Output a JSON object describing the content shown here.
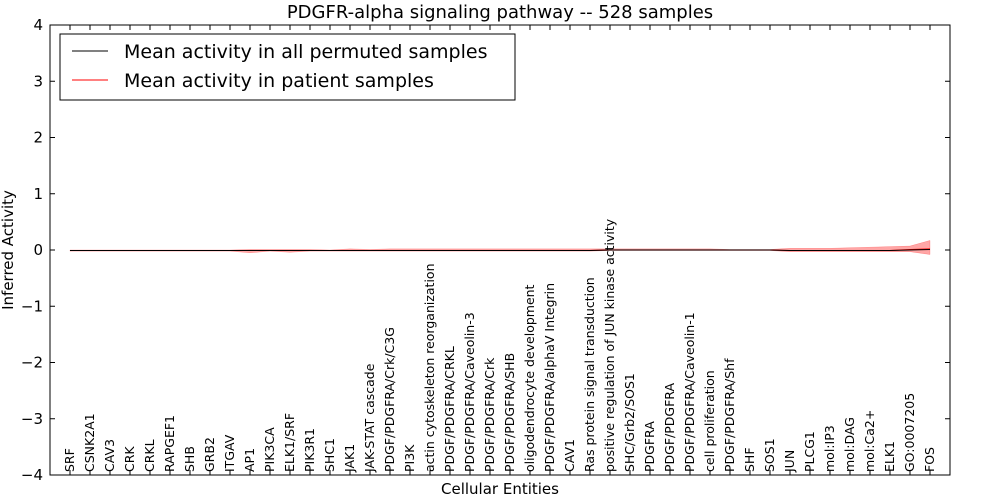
{
  "chart_data": {
    "type": "line",
    "title": "PDGFR-alpha signaling pathway -- 528 samples",
    "xlabel": "Cellular Entities",
    "ylabel": "Inferred Activity",
    "ylim": [
      -4,
      4
    ],
    "yticks": [
      {
        "value": -4,
        "label": "−4"
      },
      {
        "value": -3,
        "label": "−3"
      },
      {
        "value": -2,
        "label": "−2"
      },
      {
        "value": -1,
        "label": "−1"
      },
      {
        "value": 0,
        "label": "0"
      },
      {
        "value": 1,
        "label": "1"
      },
      {
        "value": 2,
        "label": "2"
      },
      {
        "value": 3,
        "label": "3"
      },
      {
        "value": 4,
        "label": "4"
      }
    ],
    "grid": false,
    "legend_position": "top-left",
    "categories": [
      "SRF",
      "CSNK2A1",
      "CAV3",
      "CRK",
      "CRKL",
      "RAPGEF1",
      "SHB",
      "GRB2",
      "ITGAV",
      "AP1",
      "PIK3CA",
      "ELK1/SRF",
      "PIK3R1",
      "SHC1",
      "JAK1",
      "JAK-STAT cascade",
      "PDGF/PDGFRA/Crk/C3G",
      "PI3K",
      "actin cytoskeleton reorganization",
      "PDGF/PDGFRA/CRKL",
      "PDGF/PDGFRA/Caveolin-3",
      "PDGF/PDGFRA/Crk",
      "PDGF/PDGFRA/SHB",
      "oligodendrocyte development",
      "PDGF/PDGFRA/alphaV Integrin",
      "CAV1",
      "Ras protein signal transduction",
      "positive regulation of JUN kinase activity",
      "SHC/Grb2/SOS1",
      "PDGFRA",
      "PDGF/PDGFRA",
      "PDGF/PDGFRA/Caveolin-1",
      "cell proliferation",
      "PDGF/PDGFRA/Shf",
      "SHF",
      "SOS1",
      "JUN",
      "PLCG1",
      "mol:IP3",
      "mol:DAG",
      "mol:Ca2+",
      "ELK1",
      "GO:0007205",
      "FOS"
    ],
    "series": [
      {
        "name": "Mean activity in all permuted samples",
        "color": "#000000",
        "values": [
          -0.01,
          -0.01,
          -0.01,
          -0.01,
          -0.01,
          -0.01,
          -0.01,
          -0.01,
          -0.01,
          -0.01,
          -0.01,
          -0.01,
          -0.01,
          -0.01,
          -0.01,
          -0.01,
          -0.01,
          -0.01,
          -0.01,
          -0.01,
          -0.01,
          -0.01,
          -0.01,
          -0.01,
          -0.01,
          -0.01,
          -0.01,
          0,
          0,
          0,
          0,
          0,
          0,
          0,
          0,
          0,
          -0.01,
          -0.01,
          -0.01,
          -0.01,
          -0.01,
          -0.01,
          0,
          0.01
        ]
      },
      {
        "name": "Mean activity in patient samples",
        "color": "#ff0000",
        "values": [
          -0.01,
          -0.01,
          -0.01,
          -0.01,
          -0.01,
          -0.01,
          -0.01,
          -0.01,
          -0.01,
          -0.01,
          -0.01,
          -0.01,
          -0.01,
          -0.01,
          -0.01,
          -0.01,
          -0.01,
          -0.01,
          -0.01,
          -0.01,
          -0.01,
          -0.01,
          -0.01,
          -0.01,
          -0.01,
          -0.01,
          -0.01,
          0,
          0,
          0,
          0,
          0,
          0,
          0,
          0,
          0,
          -0.01,
          -0.01,
          -0.01,
          -0.01,
          -0.01,
          -0.01,
          0.01,
          0.02
        ],
        "band_upper": [
          0,
          0,
          0,
          0,
          0,
          0,
          0,
          0,
          0,
          0.01,
          0.01,
          0.01,
          0.01,
          0,
          0.02,
          0.01,
          0.02,
          0.02,
          0.02,
          0.02,
          0.02,
          0.02,
          0.02,
          0.02,
          0.02,
          0.02,
          0.02,
          0.02,
          0.02,
          0.02,
          0.02,
          0.02,
          0.02,
          0.01,
          0.01,
          0.01,
          0.03,
          0.03,
          0.03,
          0.04,
          0.05,
          0.06,
          0.07,
          0.17
        ],
        "band_lower": [
          -0.02,
          -0.02,
          -0.02,
          -0.02,
          -0.02,
          -0.02,
          -0.02,
          -0.02,
          -0.02,
          -0.05,
          -0.02,
          -0.04,
          -0.02,
          -0.02,
          -0.02,
          -0.02,
          -0.02,
          -0.02,
          -0.02,
          -0.02,
          -0.02,
          -0.02,
          -0.02,
          -0.02,
          -0.02,
          -0.02,
          -0.02,
          -0.01,
          -0.01,
          -0.01,
          -0.01,
          -0.01,
          -0.01,
          -0.01,
          -0.01,
          -0.01,
          -0.03,
          -0.03,
          -0.03,
          -0.03,
          -0.03,
          -0.03,
          -0.03,
          -0.08
        ]
      }
    ]
  }
}
